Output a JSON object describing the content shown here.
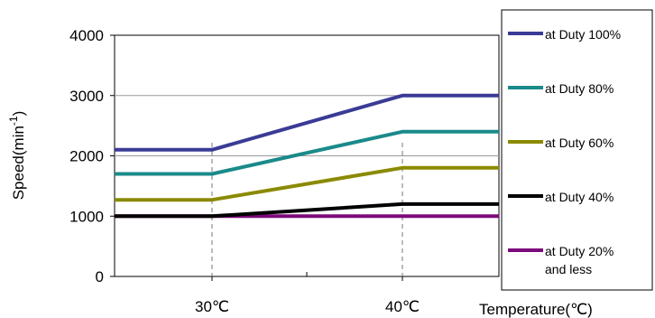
{
  "chart_data": {
    "type": "line",
    "ylabel": "Speed(min",
    "ylabel_sup": "-1",
    "ylabel_close": ")",
    "xlabel": "Temperature(℃)",
    "x_categories": [
      "30℃",
      "40℃"
    ],
    "ylim": [
      0,
      4000
    ],
    "yticks": [
      "0",
      "1000",
      "2000",
      "3000",
      "4000"
    ],
    "grid": "horizontal",
    "legend_position": "right",
    "series": [
      {
        "name_lines": [
          "at Duty 100%"
        ],
        "color": "#3a3b96",
        "points": [
          [
            "≤30℃",
            2100
          ],
          [
            "30℃",
            2100
          ],
          [
            "40℃",
            3000
          ],
          [
            "≥40℃",
            3000
          ]
        ]
      },
      {
        "name_lines": [
          "at Duty 80%"
        ],
        "color": "#1a8a8a",
        "points": [
          [
            "≤30℃",
            1700
          ],
          [
            "30℃",
            1700
          ],
          [
            "40℃",
            2400
          ],
          [
            "≥40℃",
            2400
          ]
        ]
      },
      {
        "name_lines": [
          "at Duty 60%"
        ],
        "color": "#8a8a00",
        "points": [
          [
            "≤30℃",
            1270
          ],
          [
            "30℃",
            1270
          ],
          [
            "40℃",
            1800
          ],
          [
            "≥40℃",
            1800
          ]
        ]
      },
      {
        "name_lines": [
          "at Duty 40%"
        ],
        "color": "#000000",
        "points": [
          [
            "≤30℃",
            1000
          ],
          [
            "30℃",
            1000
          ],
          [
            "40℃",
            1200
          ],
          [
            "≥40℃",
            1200
          ]
        ]
      },
      {
        "name_lines": [
          "at Duty 20%",
          "and less"
        ],
        "color": "#7d0a7d",
        "points": [
          [
            "≤30℃",
            1000
          ],
          [
            "30℃",
            1000
          ],
          [
            "40℃",
            1000
          ],
          [
            "≥40℃",
            1000
          ]
        ]
      }
    ]
  }
}
